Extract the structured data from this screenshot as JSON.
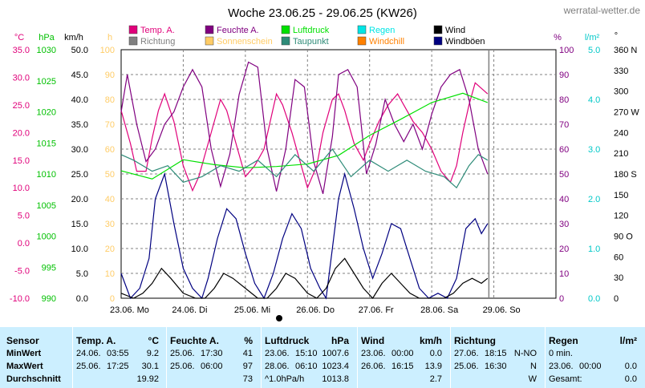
{
  "title": "Woche 23.06.25 - 29.06.25 (KW26)",
  "site": "werratal-wetter.de",
  "legend": [
    {
      "name": "Temp. A.",
      "color": "#e0007a"
    },
    {
      "name": "Richtung",
      "color": "#808080"
    },
    {
      "name": "Feuchte A.",
      "color": "#800080"
    },
    {
      "name": "Sonnenschein",
      "color": "#ffcc66"
    },
    {
      "name": "Luftdruck",
      "color": "#00e000"
    },
    {
      "name": "Taupunkt",
      "color": "#2e8b78"
    },
    {
      "name": "Regen",
      "color": "#00e5e5"
    },
    {
      "name": "Windchill",
      "color": "#ff8000"
    },
    {
      "name": "Wind",
      "color": "#000000"
    },
    {
      "name": "Windböen",
      "color": "#000080"
    }
  ],
  "axes": {
    "temp": {
      "unit": "°C",
      "ticks": [
        "35.0",
        "30.0",
        "25.0",
        "20.0",
        "15.0",
        "10.0",
        "5.0",
        "0.0",
        "-5.0",
        "-10.0"
      ],
      "color": "#e0007a"
    },
    "pressure": {
      "unit": "hPa",
      "ticks": [
        "1030",
        "1025",
        "1020",
        "1015",
        "1010",
        "1005",
        "1000",
        "995",
        "990"
      ],
      "color": "#00c000"
    },
    "wind": {
      "unit": "km/h",
      "ticks": [
        "50.0",
        "45.0",
        "40.0",
        "35.0",
        "30.0",
        "25.0",
        "20.0",
        "15.0",
        "10.0",
        "5.0",
        "0.0"
      ],
      "color": "#000000"
    },
    "sun": {
      "unit": "h",
      "ticks": [
        "100",
        "90",
        "80",
        "70",
        "60",
        "50",
        "40",
        "30",
        "20",
        "10",
        "0"
      ],
      "color": "#ffcc66"
    },
    "humidity": {
      "unit": "%",
      "ticks": [
        "100",
        "90",
        "80",
        "70",
        "60",
        "50",
        "40",
        "30",
        "20",
        "10",
        "0"
      ],
      "color": "#800080"
    },
    "rain": {
      "unit": "l/m²",
      "ticks": [
        "5.0",
        "4.0",
        "3.0",
        "2.0",
        "1.0",
        "0.0"
      ],
      "color": "#00c8c8"
    },
    "direction": {
      "unit": "°",
      "ticks": [
        "360 N",
        "330",
        "300",
        "270 W",
        "240",
        "210",
        "180 S",
        "150",
        "120",
        "90 O",
        "60",
        "30",
        "0"
      ],
      "color": "#000000"
    }
  },
  "x_labels": [
    "23.06.  Mo",
    "24.06.  Di",
    "25.06.  Mi",
    "26.06.  Do",
    "27.06.  Fr",
    "28.06.  Sa",
    "29.06.  So"
  ],
  "chart_data": {
    "type": "line",
    "x_unit": "days since 23.06.25 00:00",
    "series": [
      {
        "name": "Temp. A.",
        "color": "#e0007a",
        "x": [
          0,
          0.15,
          0.25,
          0.4,
          0.5,
          0.6,
          0.7,
          0.85,
          1.0,
          1.15,
          1.25,
          1.4,
          1.5,
          1.6,
          1.7,
          1.85,
          2.0,
          2.15,
          2.3,
          2.4,
          2.5,
          2.6,
          2.75,
          2.9,
          3.0,
          3.15,
          3.25,
          3.4,
          3.5,
          3.6,
          3.75,
          3.9,
          4.0,
          4.15,
          4.3,
          4.45,
          4.5,
          4.6,
          4.7,
          4.85,
          5.0,
          5.15,
          5.3,
          5.4,
          5.5,
          5.6,
          5.7,
          5.9
        ],
        "y": [
          24,
          18,
          13,
          13,
          19,
          24,
          27,
          22,
          14,
          9.5,
          12,
          18,
          22,
          26,
          24,
          18,
          12,
          14,
          17,
          22,
          27,
          25,
          20,
          14,
          10,
          14,
          20,
          26,
          27,
          24,
          18,
          15,
          18,
          22,
          25,
          27,
          26,
          24,
          22,
          20,
          17,
          13,
          11,
          14,
          20,
          25,
          29,
          27
        ]
      },
      {
        "name": "Feuchte A.",
        "color": "#800080",
        "x": [
          0,
          0.1,
          0.25,
          0.4,
          0.55,
          0.7,
          0.85,
          1.0,
          1.15,
          1.3,
          1.45,
          1.6,
          1.75,
          1.9,
          2.05,
          2.2,
          2.35,
          2.5,
          2.65,
          2.8,
          2.95,
          3.1,
          3.25,
          3.4,
          3.5,
          3.65,
          3.8,
          3.95,
          4.1,
          4.25,
          4.4,
          4.55,
          4.7,
          4.85,
          5.0,
          5.15,
          5.3,
          5.45,
          5.6,
          5.75,
          5.9
        ],
        "y": [
          75,
          90,
          70,
          55,
          60,
          70,
          75,
          85,
          92,
          85,
          60,
          45,
          58,
          82,
          95,
          93,
          60,
          43,
          60,
          88,
          85,
          55,
          42,
          65,
          90,
          92,
          85,
          50,
          62,
          80,
          70,
          63,
          70,
          60,
          74,
          85,
          90,
          92,
          80,
          60,
          50
        ]
      },
      {
        "name": "Luftdruck",
        "color": "#00e000",
        "x": [
          0,
          0.5,
          1.0,
          1.5,
          2.0,
          2.5,
          3.0,
          3.5,
          4.0,
          4.5,
          5.0,
          5.5,
          5.9
        ],
        "y": [
          1010.5,
          1009.2,
          1012.3,
          1011.5,
          1011.0,
          1011.2,
          1011.6,
          1013.0,
          1016.2,
          1018.8,
          1021.5,
          1023.0,
          1021.5
        ]
      },
      {
        "name": "Taupunkt",
        "color": "#2e8b78",
        "x": [
          0,
          0.2,
          0.5,
          0.75,
          1.0,
          1.3,
          1.6,
          1.9,
          2.2,
          2.5,
          2.8,
          3.1,
          3.4,
          3.7,
          4.0,
          4.3,
          4.6,
          4.9,
          5.2,
          5.4,
          5.6,
          5.75,
          5.9
        ],
        "y": [
          16,
          15,
          13,
          14,
          11,
          12,
          14,
          13,
          15,
          12,
          16,
          13,
          17,
          12,
          15,
          13,
          15,
          13,
          12,
          10,
          14,
          16,
          15
        ]
      },
      {
        "name": "Windböen",
        "color": "#000080",
        "x": [
          0,
          0.15,
          0.3,
          0.45,
          0.55,
          0.7,
          0.85,
          1.0,
          1.15,
          1.3,
          1.4,
          1.55,
          1.7,
          1.85,
          2.0,
          2.15,
          2.3,
          2.45,
          2.6,
          2.75,
          2.9,
          3.05,
          3.2,
          3.3,
          3.4,
          3.5,
          3.6,
          3.75,
          3.9,
          4.05,
          4.2,
          4.35,
          4.5,
          4.65,
          4.8,
          4.95,
          5.1,
          5.25,
          5.4,
          5.55,
          5.7,
          5.8,
          5.9
        ],
        "y": [
          5,
          0,
          2,
          8,
          20,
          25,
          15,
          6,
          2,
          0,
          4,
          12,
          18,
          16,
          9,
          3,
          0,
          5,
          12,
          17,
          14,
          6,
          2,
          0,
          10,
          20,
          25,
          18,
          10,
          4,
          9,
          15,
          14,
          8,
          2,
          0,
          1,
          0,
          4,
          14,
          16,
          13,
          15
        ]
      },
      {
        "name": "Wind",
        "color": "#000000",
        "x": [
          0,
          0.2,
          0.35,
          0.5,
          0.65,
          0.8,
          1.0,
          1.2,
          1.35,
          1.5,
          1.65,
          1.8,
          2.0,
          2.2,
          2.35,
          2.5,
          2.65,
          2.8,
          3.0,
          3.15,
          3.3,
          3.45,
          3.6,
          3.75,
          3.9,
          4.05,
          4.2,
          4.35,
          4.5,
          4.65,
          4.8,
          5.0,
          5.2,
          5.35,
          5.5,
          5.65,
          5.8,
          5.9
        ],
        "y": [
          1,
          0,
          1,
          3,
          6,
          4,
          1,
          0,
          0,
          2,
          5,
          4,
          2,
          0,
          0,
          2,
          5,
          4,
          1,
          0,
          2,
          6,
          8,
          5,
          2,
          0,
          3,
          5,
          3,
          1,
          0,
          0,
          0,
          1,
          3,
          4,
          3,
          4
        ]
      }
    ],
    "xlim": [
      0,
      7
    ],
    "ylim": {
      "temp": [
        -10,
        35
      ],
      "pressure": [
        990,
        1030
      ],
      "wind": [
        0,
        50
      ],
      "humidity": [
        0,
        100
      ],
      "rain": [
        0,
        5
      ],
      "direction": [
        0,
        360
      ]
    }
  },
  "stats": {
    "row_labels": {
      "sensor": "Sensor",
      "min": "MinWert",
      "max": "MaxWert",
      "avg": "Durchschnitt"
    },
    "columns": [
      {
        "title": "Temp. A.",
        "unit": "°C",
        "min": [
          "24.06.",
          "03:55",
          "9.2"
        ],
        "max": [
          "25.06.",
          "17:25",
          "30.1"
        ],
        "avg": [
          "",
          "",
          "19.92"
        ]
      },
      {
        "title": "Feuchte A.",
        "unit": "%",
        "min": [
          "25.06.",
          "17:30",
          "41"
        ],
        "max": [
          "25.06.",
          "06:00",
          "97"
        ],
        "avg": [
          "",
          "",
          "73"
        ]
      },
      {
        "title": "Luftdruck",
        "unit": "hPa",
        "min": [
          "23.06.",
          "15:10",
          "1007.6"
        ],
        "max": [
          "28.06.",
          "06:10",
          "1023.4"
        ],
        "avg": [
          "^1.0hPa/h",
          "",
          "1013.8"
        ]
      },
      {
        "title": "Wind",
        "unit": "km/h",
        "min": [
          "23.06.",
          "00:00",
          "0.0"
        ],
        "max": [
          "26.06.",
          "16:15",
          "13.9"
        ],
        "avg": [
          "",
          "",
          "2.7"
        ]
      },
      {
        "title": "Richtung",
        "unit": "",
        "min": [
          "27.06.",
          "18:15",
          "N-NO"
        ],
        "max": [
          "25.06.",
          "16:30",
          "N"
        ],
        "avg": [
          "",
          "",
          "W"
        ]
      },
      {
        "title": "Regen",
        "unit": "l/m²",
        "min": [
          "0 min.",
          "",
          ""
        ],
        "max": [
          "23.06.",
          "00:00",
          "0.0"
        ],
        "avg": [
          "Gesamt:",
          "",
          "0.0"
        ]
      }
    ]
  }
}
